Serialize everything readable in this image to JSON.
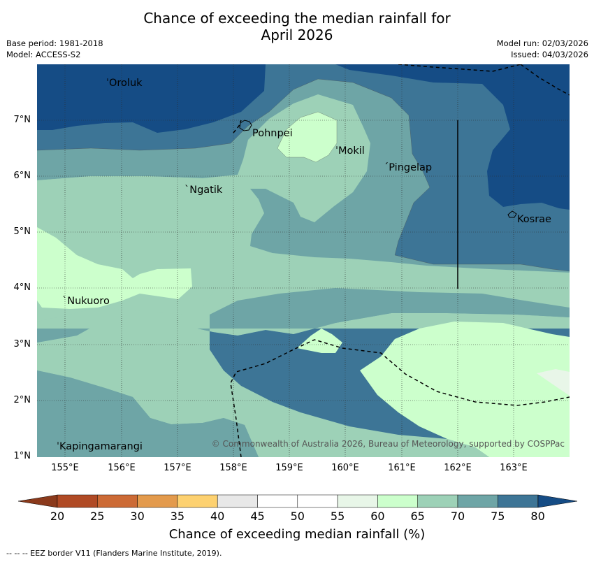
{
  "title_line1": "Chance of exceeding the median rainfall for",
  "title_line2": "April 2026",
  "meta": {
    "base_period": "Base period: 1981-2018",
    "model": "Model: ACCESS-S2",
    "model_run": "Model run: 02/03/2026",
    "issued": "Issued: 04/03/2026"
  },
  "lat_labels": [
    "7°N",
    "6°N",
    "5°N",
    "4°N",
    "3°N",
    "2°N",
    "1°N"
  ],
  "lon_labels": [
    "155°E",
    "156°E",
    "157°E",
    "158°E",
    "159°E",
    "160°E",
    "161°E",
    "162°E",
    "163°E"
  ],
  "places": {
    "oroluk": "Oroluk",
    "pohnpei": "Pohnpei",
    "mokil": "Mokil",
    "pingelap": "Pingelap",
    "ngatik": "Ngatik",
    "kosrae": "Kosrae",
    "nukuoro": "Nukuoro",
    "kapingamarangi": "Kapingamarangi"
  },
  "copyright": "© Commonwealth of Australia 2026, Bureau of Meteorology, supported by COSPPac",
  "colorbar": {
    "labels": [
      "20",
      "25",
      "30",
      "35",
      "40",
      "45",
      "50",
      "55",
      "60",
      "65",
      "70",
      "75",
      "80"
    ],
    "colors": [
      "#b04a25",
      "#cc6a35",
      "#e39a4c",
      "#fdd170",
      "#e8e8e8",
      "#ffffff",
      "#ffffff",
      "#e8f6e8",
      "#ccffcc",
      "#9dd1b7",
      "#6ea5a6",
      "#3d7596"
    ],
    "under_color": "#8b3a1c",
    "over_color": "#154c85",
    "title": "Chance of exceeding median rainfall (%)"
  },
  "footer": "--  --  -- EEZ border V11 (Flanders Marine Institute, 2019)."
}
